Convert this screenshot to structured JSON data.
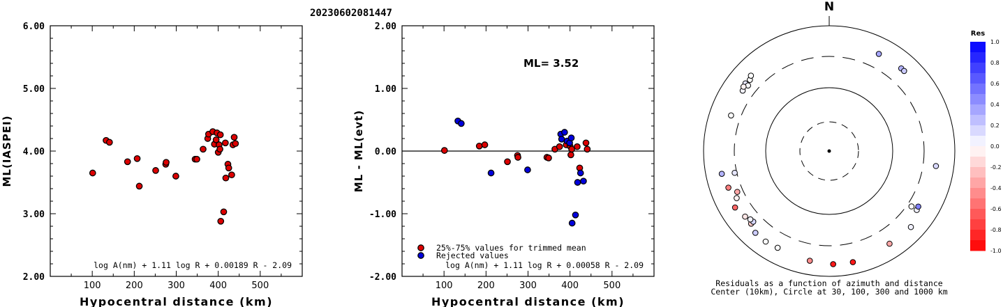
{
  "page_title": "20230602081447",
  "chart_data": [
    {
      "type": "scatter",
      "id": "ml-vs-distance",
      "ylabel": "ML(IASPEI)",
      "xlabel": "Hypocentral distance (km)",
      "xlim": [
        0,
        600
      ],
      "ylim": [
        2.0,
        6.0
      ],
      "xticks": [
        "100",
        "200",
        "300",
        "400",
        "500"
      ],
      "yticks": [
        "2.00",
        "3.00",
        "4.00",
        "5.00",
        "6.00"
      ],
      "formula": "log A(nm) + 1.11 log R + 0.00189 R - 2.09",
      "point_color": "#dd0000",
      "points": [
        [
          101,
          3.65
        ],
        [
          133,
          4.17
        ],
        [
          141,
          4.14
        ],
        [
          184,
          3.83
        ],
        [
          207,
          3.88
        ],
        [
          212,
          3.44
        ],
        [
          251,
          3.69
        ],
        [
          275,
          3.79
        ],
        [
          276,
          3.82
        ],
        [
          299,
          3.6
        ],
        [
          345,
          3.87
        ],
        [
          349,
          3.87
        ],
        [
          364,
          4.03
        ],
        [
          375,
          4.2
        ],
        [
          377,
          4.27
        ],
        [
          387,
          4.31
        ],
        [
          391,
          4.11
        ],
        [
          395,
          4.18
        ],
        [
          397,
          4.29
        ],
        [
          400,
          3.98
        ],
        [
          402,
          4.1
        ],
        [
          404,
          4.03
        ],
        [
          405,
          4.26
        ],
        [
          406,
          2.88
        ],
        [
          413,
          3.03
        ],
        [
          417,
          4.13
        ],
        [
          418,
          3.57
        ],
        [
          423,
          3.79
        ],
        [
          425,
          3.73
        ],
        [
          432,
          3.62
        ],
        [
          435,
          4.1
        ],
        [
          438,
          4.22
        ],
        [
          441,
          4.12
        ]
      ]
    },
    {
      "type": "scatter",
      "id": "residual-vs-distance",
      "ylabel": "ML - ML(evt)",
      "xlabel": "Hypocentral distance (km)",
      "xlim": [
        0,
        600
      ],
      "ylim": [
        -2.0,
        2.0
      ],
      "xticks": [
        "100",
        "200",
        "300",
        "400",
        "500"
      ],
      "yticks": [
        "-2.00",
        "-1.00",
        "0.00",
        "1.00",
        "2.00"
      ],
      "annotation": "ML= 3.52",
      "formula": "log A(nm) + 1.11 log R + 0.00058 R - 2.09",
      "legend": [
        "25%-75% values for trimmed mean",
        "Rejected values"
      ],
      "series": [
        {
          "name": "25%-75% values for trimmed mean",
          "color": "#dd0000",
          "points": [
            [
              101,
              0.01
            ],
            [
              184,
              0.08
            ],
            [
              197,
              0.1
            ],
            [
              251,
              -0.17
            ],
            [
              275,
              -0.07
            ],
            [
              276,
              -0.1
            ],
            [
              345,
              -0.1
            ],
            [
              349,
              -0.11
            ],
            [
              364,
              0.03
            ],
            [
              375,
              0.07
            ],
            [
              391,
              0.1
            ],
            [
              400,
              0.08
            ],
            [
              402,
              -0.06
            ],
            [
              404,
              0.03
            ],
            [
              417,
              0.07
            ],
            [
              423,
              -0.27
            ],
            [
              438,
              0.13
            ],
            [
              441,
              0.03
            ]
          ]
        },
        {
          "name": "Rejected values",
          "color": "#0000dd",
          "points": [
            [
              133,
              0.48
            ],
            [
              141,
              0.44
            ],
            [
              212,
              -0.35
            ],
            [
              299,
              -0.3
            ],
            [
              378,
              0.27
            ],
            [
              380,
              0.19
            ],
            [
              387,
              0.3
            ],
            [
              393,
              0.16
            ],
            [
              399,
              0.13
            ],
            [
              403,
              0.21
            ],
            [
              405,
              -1.15
            ],
            [
              413,
              -1.02
            ],
            [
              418,
              -0.5
            ],
            [
              425,
              -0.35
            ],
            [
              432,
              -0.48
            ]
          ]
        }
      ]
    },
    {
      "type": "polar-scatter",
      "id": "residual-azimuth",
      "north_label": "N",
      "caption_line1": "Residuals as a function of azimuth and distance",
      "caption_line2": "Center (10km), Circle at 30, 100, 300 and 1000 km",
      "colorbar_title": "Res",
      "colorbar_ticks": [
        "1.0",
        "0.8",
        "0.6",
        "0.4",
        "0.2",
        "0.0",
        "-0.2",
        "-0.4",
        "-0.6",
        "-0.8",
        "-1.0"
      ],
      "points": [
        {
          "az": 305,
          "res": 0.05
        },
        {
          "az": 312,
          "res": 0.0
        },
        {
          "az": 309,
          "res": 0.1
        },
        {
          "az": 314,
          "res": 0.0
        },
        {
          "az": 309,
          "res": 0.02
        },
        {
          "az": 307,
          "res": -0.05
        },
        {
          "az": 290,
          "res": 0.0
        },
        {
          "az": 27,
          "res": 0.35
        },
        {
          "az": 41,
          "res": 0.3
        },
        {
          "az": 43,
          "res": 0.2
        },
        {
          "az": 98,
          "res": 0.15
        },
        {
          "az": 246,
          "res": -0.35
        },
        {
          "az": 258,
          "res": 0.3
        },
        {
          "az": 257,
          "res": 0.1
        },
        {
          "az": 250,
          "res": -0.5
        },
        {
          "az": 243,
          "res": -0.05
        },
        {
          "az": 239,
          "res": -0.6
        },
        {
          "az": 232,
          "res": -0.1
        },
        {
          "az": 227,
          "res": -0.2
        },
        {
          "az": 227,
          "res": 0.15
        },
        {
          "az": 229,
          "res": 0.05
        },
        {
          "az": 222,
          "res": 0.2
        },
        {
          "az": 215,
          "res": 0.0
        },
        {
          "az": 208,
          "res": 0.0
        },
        {
          "az": 190,
          "res": -0.45
        },
        {
          "az": 178,
          "res": -0.9
        },
        {
          "az": 168,
          "res": -0.9
        },
        {
          "az": 147,
          "res": -0.35
        },
        {
          "az": 133,
          "res": 0.05
        },
        {
          "az": 124,
          "res": 0.05
        },
        {
          "az": 122,
          "res": 0.5
        },
        {
          "az": 124,
          "res": 0.0
        }
      ],
      "point_radius_km": [
        480,
        500,
        520,
        540,
        460,
        510,
        460,
        550,
        560,
        560,
        520,
        400,
        560,
        350,
        510,
        450,
        560,
        500,
        500,
        450,
        460,
        570,
        580,
        560,
        600,
        640,
        650,
        580,
        600,
        480,
        470,
        380
      ]
    }
  ]
}
